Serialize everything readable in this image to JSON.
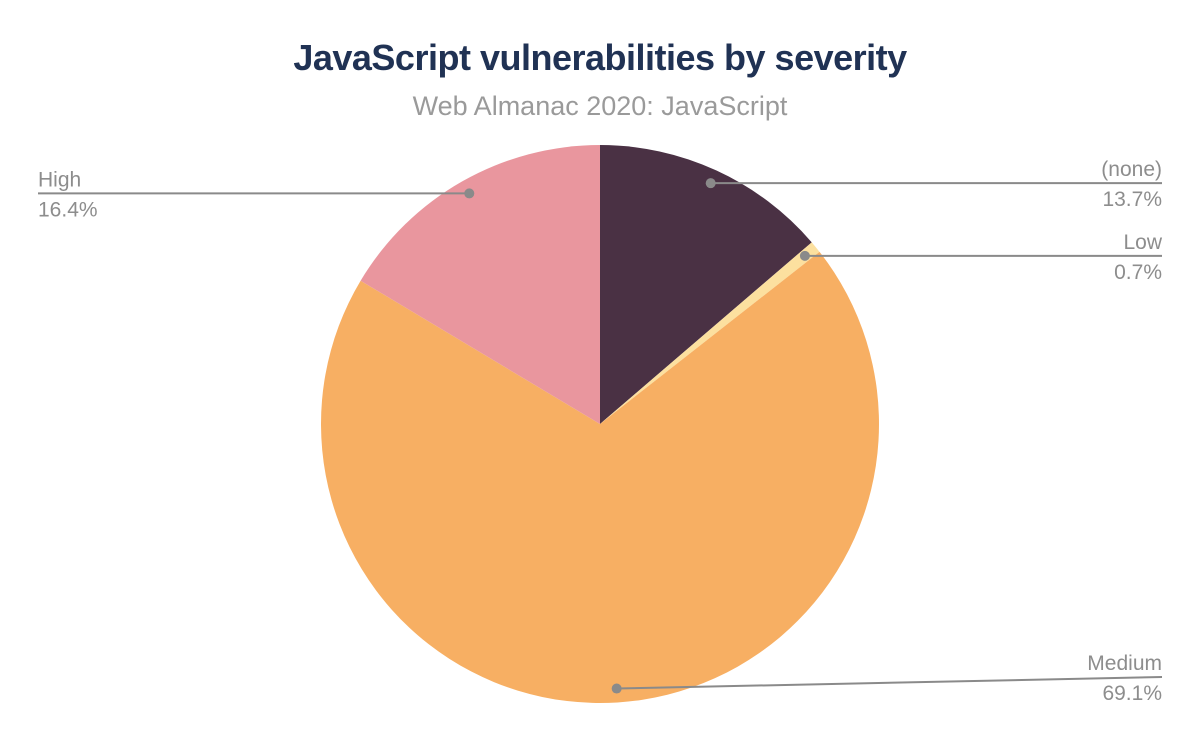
{
  "header": {
    "title": "JavaScript vulnerabilities by severity",
    "subtitle": "Web Almanac 2020: JavaScript"
  },
  "colors": {
    "background": "#ffffff",
    "title_text": "#203254",
    "subtitle_text": "#9a9a9a",
    "label_text": "#8d8d8d",
    "leader_line": "#8a8a8a"
  },
  "chart_data": {
    "type": "pie",
    "title": "JavaScript vulnerabilities by severity",
    "subtitle": "Web Almanac 2020: JavaScript",
    "start_angle_deg": 0,
    "direction": "clockwise",
    "legend_position": "none",
    "labels_style": "callout-leader-lines",
    "slices": [
      {
        "label": "(none)",
        "value": 13.7,
        "display": "13.7%",
        "color": "#4a3144",
        "label_side": "right"
      },
      {
        "label": "Low",
        "value": 0.7,
        "display": "0.7%",
        "color": "#fce09f",
        "label_side": "right"
      },
      {
        "label": "Medium",
        "value": 69.1,
        "display": "69.1%",
        "color": "#f7af63",
        "label_side": "right",
        "label_line_y": 677
      },
      {
        "label": "High",
        "value": 16.4,
        "display": "16.4%",
        "color": "#e9969e",
        "label_side": "left"
      }
    ]
  }
}
